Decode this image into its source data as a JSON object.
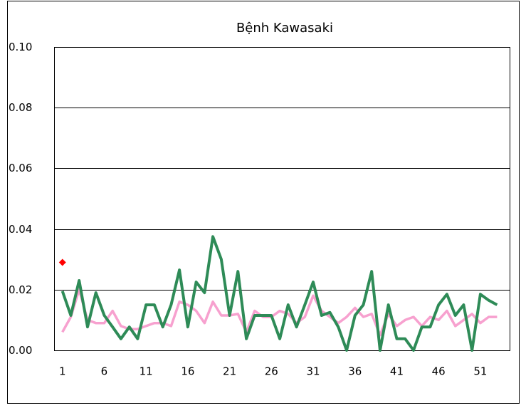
{
  "chart_data": {
    "type": "line",
    "title": "Bệnh Kawasaki",
    "x": [
      1,
      2,
      3,
      4,
      5,
      6,
      7,
      8,
      9,
      10,
      11,
      12,
      13,
      14,
      15,
      16,
      17,
      18,
      19,
      20,
      21,
      22,
      23,
      24,
      25,
      26,
      27,
      28,
      29,
      30,
      31,
      32,
      33,
      34,
      35,
      36,
      37,
      38,
      39,
      40,
      41,
      42,
      43,
      44,
      45,
      46,
      47,
      48,
      49,
      50,
      51,
      52,
      53
    ],
    "series": [
      {
        "color": "#f7a1cf",
        "values": [
          0.006,
          0.011,
          0.02,
          0.01,
          0.009,
          0.009,
          0.013,
          0.008,
          0.007,
          0.007,
          0.008,
          0.009,
          0.009,
          0.008,
          0.016,
          0.015,
          0.013,
          0.009,
          0.016,
          0.0115,
          0.0115,
          0.012,
          0.006,
          0.013,
          0.011,
          0.011,
          0.013,
          0.012,
          0.009,
          0.011,
          0.018,
          0.013,
          0.011,
          0.009,
          0.011,
          0.014,
          0.011,
          0.012,
          0.005,
          0.012,
          0.008,
          0.01,
          0.011,
          0.008,
          0.011,
          0.01,
          0.013,
          0.008,
          0.01,
          0.012,
          0.009,
          0.011,
          0.011
        ]
      },
      {
        "color": "#2e8b57",
        "values": [
          0.0195,
          0.0115,
          0.023,
          0.0077,
          0.019,
          0.0115,
          0.0077,
          0.0038,
          0.0077,
          0.0038,
          0.015,
          0.015,
          0.0077,
          0.015,
          0.0265,
          0.0077,
          0.0225,
          0.019,
          0.0375,
          0.03,
          0.0115,
          0.026,
          0.0038,
          0.0115,
          0.0115,
          0.0115,
          0.0038,
          0.015,
          0.0077,
          0.015,
          0.0225,
          0.0115,
          0.0125,
          0.0077,
          0.0,
          0.0115,
          0.015,
          0.026,
          0.0,
          0.015,
          0.0038,
          0.0038,
          0.0,
          0.0077,
          0.0077,
          0.015,
          0.0185,
          0.0115,
          0.015,
          0.0,
          0.0185,
          0.0165,
          0.015
        ]
      }
    ],
    "points": [
      {
        "color": "#ff0000",
        "x": 1,
        "y": 0.029
      }
    ],
    "xlim": [
      0,
      54.5
    ],
    "xticks": [
      1,
      6,
      11,
      16,
      21,
      26,
      31,
      36,
      41,
      46,
      51
    ],
    "ylim": [
      0,
      0.1
    ],
    "yticks": [
      {
        "value": 0,
        "label": "0.00"
      },
      {
        "value": 0.02,
        "label": "0.02"
      },
      {
        "value": 0.04,
        "label": "0.04"
      },
      {
        "value": 0.06,
        "label": "0.06"
      },
      {
        "value": 0.08,
        "label": "0.08"
      },
      {
        "value": 0.1,
        "label": "0.10"
      }
    ],
    "grid": true
  }
}
